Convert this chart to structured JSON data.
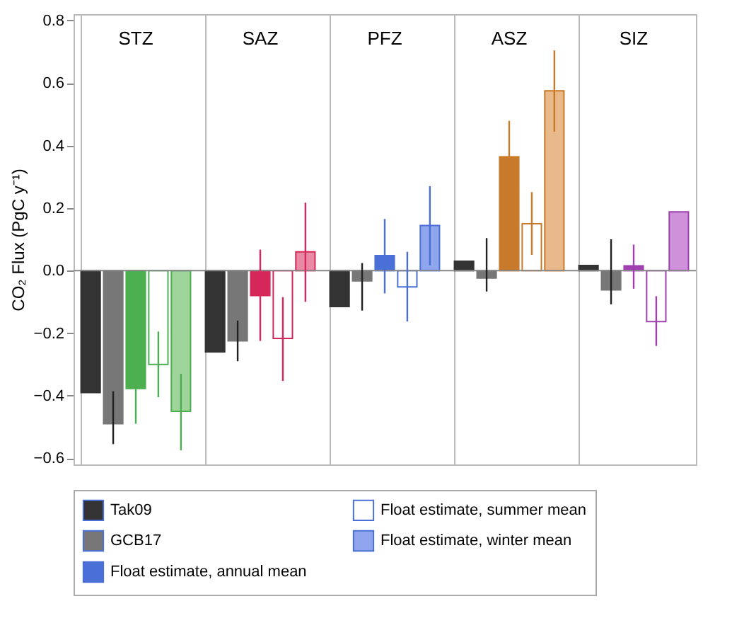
{
  "chart_data": {
    "type": "bar",
    "ylabel": "CO₂ Flux (PgC y⁻¹)",
    "categories": [
      "STZ",
      "SAZ",
      "PFZ",
      "ASZ",
      "SIZ"
    ],
    "series": [
      {
        "name": "Tak09",
        "color": "#333333",
        "values": [
          -0.39,
          -0.26,
          -0.115,
          0.03,
          0.016
        ],
        "errors": [
          null,
          null,
          null,
          null,
          null
        ]
      },
      {
        "name": "GCB17",
        "color": "#777777",
        "values": [
          -0.49,
          -0.225,
          -0.033,
          -0.024,
          -0.062
        ],
        "errors": [
          [
            -0.555,
            -0.386
          ],
          [
            -0.29,
            -0.16
          ],
          [
            -0.128,
            0.024
          ],
          [
            -0.067,
            0.104
          ],
          [
            -0.108,
            0.1
          ]
        ]
      },
      {
        "name": "Float estimate, annual mean",
        "color": "#4a6fd6",
        "colors": [
          "#4caf50",
          "#d6275a",
          "#4a6fd6",
          "#c87a2a",
          "#a040b0"
        ],
        "values": [
          -0.377,
          -0.08,
          0.048,
          0.364,
          0.015
        ],
        "errors": [
          [
            -0.49,
            -0.377
          ],
          [
            -0.225,
            0.067
          ],
          [
            -0.073,
            0.165
          ],
          [
            0.364,
            0.479
          ],
          [
            -0.058,
            0.083
          ]
        ]
      },
      {
        "name": "Float estimate, summer mean",
        "color": "#ffffff",
        "colors": [
          "#ffffff",
          "#ffffff",
          "#ffffff",
          "#ffffff",
          "#ffffff"
        ],
        "values": [
          -0.3,
          -0.217,
          -0.052,
          0.15,
          -0.163
        ],
        "errors": [
          [
            -0.405,
            -0.195
          ],
          [
            -0.353,
            -0.085
          ],
          [
            -0.163,
            0.06
          ],
          [
            0.05,
            0.251
          ],
          [
            -0.241,
            -0.082
          ]
        ]
      },
      {
        "name": "Float estimate, winter mean",
        "color": "#8fa5ee",
        "colors": [
          "#9fd49a",
          "#e98aa5",
          "#8fa5ee",
          "#e8b98a",
          "#cf92da"
        ],
        "values": [
          -0.45,
          0.06,
          0.144,
          0.575,
          0.188
        ],
        "errors": [
          [
            -0.575,
            -0.33
          ],
          [
            -0.1,
            0.217
          ],
          [
            0.017,
            0.27
          ],
          [
            0.444,
            0.704
          ],
          null
        ]
      }
    ],
    "ylim": [
      -0.62,
      0.82
    ],
    "yticks": [
      -0.6,
      -0.4,
      -0.2,
      {
        "value": 0,
        "label": "0.0"
      },
      0.2,
      0.4,
      0.6,
      0.8
    ],
    "ref_lines": [
      {
        "axis": "y",
        "value": 0,
        "color": "#888888"
      }
    ],
    "grid": "x",
    "legend": "bottom"
  }
}
